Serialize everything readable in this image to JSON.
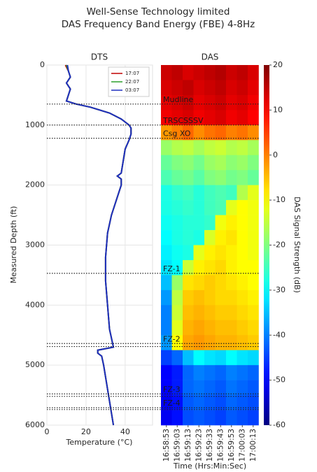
{
  "title": "Well-Sense Technology limited",
  "subtitle": "DAS Frequency Band Energy (FBE) 4-8Hz",
  "annotations": [
    {
      "label": "Mudline",
      "depths": [
        650
      ]
    },
    {
      "label": "TRSCSSSV",
      "depths": [
        1000
      ]
    },
    {
      "label": "Csg XO",
      "depths": [
        1220
      ]
    },
    {
      "label": "FZ-1",
      "depths": [
        3470
      ]
    },
    {
      "label": "FZ-2",
      "depths": [
        4640,
        4690
      ]
    },
    {
      "label": "FZ-3",
      "depths": [
        5480,
        5520
      ]
    },
    {
      "label": "FZ-4",
      "depths": [
        5710,
        5740
      ]
    }
  ],
  "chart_data": [
    {
      "type": "line",
      "title": "DTS",
      "xlabel": "Temperature (°C)",
      "ylabel": "Measured Depth (ft)",
      "xlim": [
        0,
        54
      ],
      "xticks": [
        0,
        20,
        40
      ],
      "ylim": [
        0,
        6000
      ],
      "invert_y": true,
      "yticks": [
        0,
        1000,
        2000,
        3000,
        4000,
        5000,
        6000
      ],
      "grid": true,
      "legend": "upper right",
      "y": [
        0,
        100,
        200,
        300,
        400,
        500,
        600,
        650,
        700,
        800,
        900,
        1000,
        1050,
        1150,
        1250,
        1400,
        1600,
        1800,
        1850,
        1900,
        2000,
        2200,
        2500,
        2800,
        3200,
        3600,
        4000,
        4400,
        4700,
        4750,
        4800,
        4850,
        5000,
        5400,
        5800,
        6000
      ],
      "series": [
        {
          "name": "17:07",
          "color": "#c00000",
          "values": [
            9.5,
            11,
            12,
            10,
            12,
            11,
            10,
            15,
            22,
            32,
            38,
            42,
            43,
            43,
            42,
            40,
            39,
            38,
            36,
            38,
            38,
            36,
            33,
            31,
            30,
            30,
            31,
            32,
            34,
            26,
            26,
            28,
            29,
            31,
            33,
            34
          ]
        },
        {
          "name": "22:07",
          "color": "#2ca02c",
          "values": [
            10,
            11,
            12,
            10,
            12,
            11,
            10,
            15,
            22,
            32,
            38,
            42,
            43,
            43,
            42,
            40,
            39,
            38,
            36,
            38,
            38,
            36,
            33,
            31,
            30,
            30,
            31,
            32,
            34,
            26,
            26,
            28,
            29,
            31,
            33,
            34
          ]
        },
        {
          "name": "03:07",
          "color": "#1f2fbf",
          "values": [
            10.5,
            11,
            12,
            10,
            12,
            11,
            10,
            15,
            22,
            32,
            38,
            42,
            43,
            43,
            42,
            40,
            39,
            38,
            36,
            38,
            38,
            36,
            33,
            31,
            30,
            30,
            31,
            32,
            34,
            26,
            26,
            28,
            29,
            31,
            33,
            34
          ]
        }
      ]
    },
    {
      "type": "heatmap",
      "title": "DAS",
      "xlabel": "Time (Hrs:Min:Sec)",
      "categories": [
        "16:58:53",
        "16:59:03",
        "16:59:13",
        "16:59:23",
        "16:59:33",
        "16:59:43",
        "16:59:53",
        "17:00:03",
        "17:00:13"
      ],
      "ybins": [
        0,
        250,
        500,
        750,
        1000,
        1250,
        1500,
        1750,
        2000,
        2250,
        2500,
        2750,
        3000,
        3250,
        3500,
        3750,
        4000,
        4250,
        4500,
        4750,
        5000,
        5250,
        5500,
        5750,
        6000
      ],
      "colormap": "jet",
      "clim": [
        -60,
        20
      ],
      "colorbar_label": "DAS Signal Strength (dB)",
      "colorbar_ticks": [
        20,
        10,
        0,
        -10,
        -20,
        -30,
        -40,
        -50,
        -60
      ],
      "z": [
        [
          14,
          15,
          13,
          14,
          15,
          16,
          14,
          15,
          13
        ],
        [
          13,
          14,
          15,
          13,
          14,
          15,
          13,
          14,
          12
        ],
        [
          12,
          13,
          14,
          12,
          13,
          14,
          12,
          13,
          11
        ],
        [
          11,
          12,
          13,
          11,
          12,
          13,
          11,
          12,
          10
        ],
        [
          -2,
          0,
          2,
          -1,
          1,
          2,
          0,
          1,
          -1
        ],
        [
          -18,
          -16,
          -15,
          -17,
          -15,
          -14,
          -16,
          -15,
          -17
        ],
        [
          -22,
          -20,
          -19,
          -21,
          -18,
          -17,
          -19,
          -18,
          -20
        ],
        [
          -24,
          -22,
          -21,
          -23,
          -20,
          -19,
          -21,
          -20,
          -22
        ],
        [
          -28,
          -26,
          -25,
          -27,
          -25,
          -24,
          -25,
          -16,
          -12
        ],
        [
          -28,
          -27,
          -26,
          -27,
          -25,
          -24,
          -12,
          -10,
          -11
        ],
        [
          -29,
          -28,
          -27,
          -27,
          -26,
          -11,
          -9,
          -10,
          -11
        ],
        [
          -30,
          -28,
          -27,
          -28,
          -13,
          -9,
          -8,
          -10,
          -11
        ],
        [
          -31,
          -29,
          -28,
          -12,
          -9,
          -8,
          -9,
          -10,
          -11
        ],
        [
          -32,
          -30,
          -14,
          -9,
          -8,
          -7,
          -9,
          -10,
          -10
        ],
        [
          -35,
          -18,
          -8,
          -7,
          -6,
          -7,
          -8,
          -9,
          -10
        ],
        [
          -38,
          -15,
          -6,
          -5,
          -6,
          -7,
          -7,
          -8,
          -9
        ],
        [
          -40,
          -14,
          -5,
          -4,
          -5,
          -6,
          -6,
          -7,
          -8
        ],
        [
          -40,
          -12,
          -4,
          -3,
          -4,
          -5,
          -5,
          -6,
          -7
        ],
        [
          -38,
          -10,
          -3,
          -2,
          -3,
          -4,
          -4,
          -5,
          -6
        ],
        [
          -45,
          -42,
          -35,
          -30,
          -32,
          -33,
          -30,
          -32,
          -33
        ],
        [
          -50,
          -48,
          -42,
          -40,
          -41,
          -42,
          -40,
          -41,
          -42
        ],
        [
          -50,
          -48,
          -42,
          -41,
          -42,
          -43,
          -41,
          -42,
          -43
        ],
        [
          -51,
          -49,
          -43,
          -42,
          -43,
          -44,
          -42,
          -43,
          -44
        ],
        [
          -51,
          -49,
          -44,
          -43,
          -44,
          -45,
          -43,
          -44,
          -45
        ]
      ]
    }
  ]
}
